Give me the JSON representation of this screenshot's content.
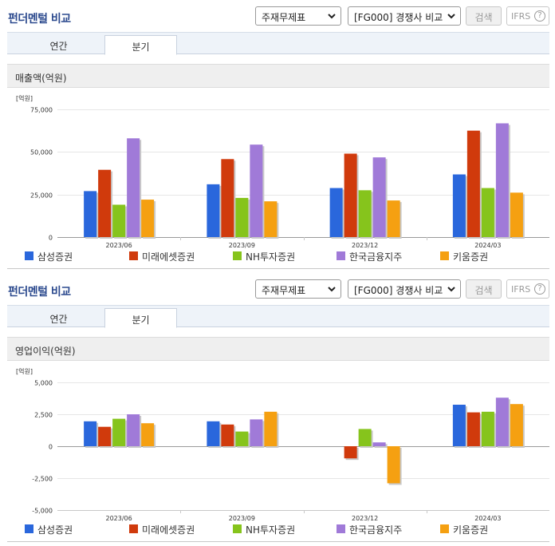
{
  "legend": [
    {
      "name": "삼성증권",
      "color": "#2a67dc"
    },
    {
      "name": "미래에셋증권",
      "color": "#d03a0c"
    },
    {
      "name": "NH투자증권",
      "color": "#86c41c"
    },
    {
      "name": "한국금융지주",
      "color": "#a07ad8"
    },
    {
      "name": "키움증권",
      "color": "#f5a011"
    }
  ],
  "sections": [
    {
      "title": "펀더멘털 비교",
      "statement_select": "주재무제표",
      "peer_select": "[FG000] 경쟁사 비교",
      "search_label": "검색",
      "ifrs_label": "IFRS",
      "tabs": [
        {
          "label": "연간",
          "active": false
        },
        {
          "label": "분기",
          "active": true
        }
      ],
      "metric_label": "매출액(억원)",
      "chart_data": {
        "type": "bar",
        "title": "",
        "unit": "[억원]",
        "categories": [
          "2023/06",
          "2023/09",
          "2023/12",
          "2024/03"
        ],
        "ylim": [
          0,
          75000
        ],
        "yticks": [
          0,
          25000,
          50000,
          75000
        ],
        "ytick_labels": [
          "0",
          "25,000",
          "50,000",
          "75,000"
        ],
        "series": [
          {
            "name": "삼성증권",
            "values": [
              27000,
              31000,
              28800,
              36800
            ]
          },
          {
            "name": "미래에셋증권",
            "values": [
              39500,
              45800,
              49000,
              62500
            ]
          },
          {
            "name": "NH투자증권",
            "values": [
              19000,
              23000,
              27500,
              28800
            ]
          },
          {
            "name": "한국금융지주",
            "values": [
              58000,
              54300,
              46800,
              66800
            ]
          },
          {
            "name": "키움증권",
            "values": [
              22000,
              21000,
              21500,
              26100
            ]
          }
        ]
      }
    },
    {
      "title": "펀더멘털 비교",
      "statement_select": "주재무제표",
      "peer_select": "[FG000] 경쟁사 비교",
      "search_label": "검색",
      "ifrs_label": "IFRS",
      "tabs": [
        {
          "label": "연간",
          "active": false
        },
        {
          "label": "분기",
          "active": true
        }
      ],
      "metric_label": "영업이익(억원)",
      "chart_data": {
        "type": "bar",
        "title": "",
        "unit": "[억원]",
        "categories": [
          "2023/06",
          "2023/09",
          "2023/12",
          "2024/03"
        ],
        "ylim": [
          -5000,
          5000
        ],
        "yticks": [
          -5000,
          -2500,
          0,
          2500,
          5000
        ],
        "ytick_labels": [
          "-5,000",
          "-2,500",
          "0",
          "2,500",
          "5,000"
        ],
        "series": [
          {
            "name": "삼성증권",
            "values": [
              1950,
              1950,
              0,
              3250
            ]
          },
          {
            "name": "미래에셋증권",
            "values": [
              1520,
              1700,
              -950,
              2650
            ]
          },
          {
            "name": "NH투자증권",
            "values": [
              2150,
              1150,
              1350,
              2700
            ]
          },
          {
            "name": "한국금융지주",
            "values": [
              2500,
              2100,
              300,
              3800
            ]
          },
          {
            "name": "키움증권",
            "values": [
              1800,
              2700,
              -2900,
              3300
            ]
          }
        ]
      }
    }
  ]
}
